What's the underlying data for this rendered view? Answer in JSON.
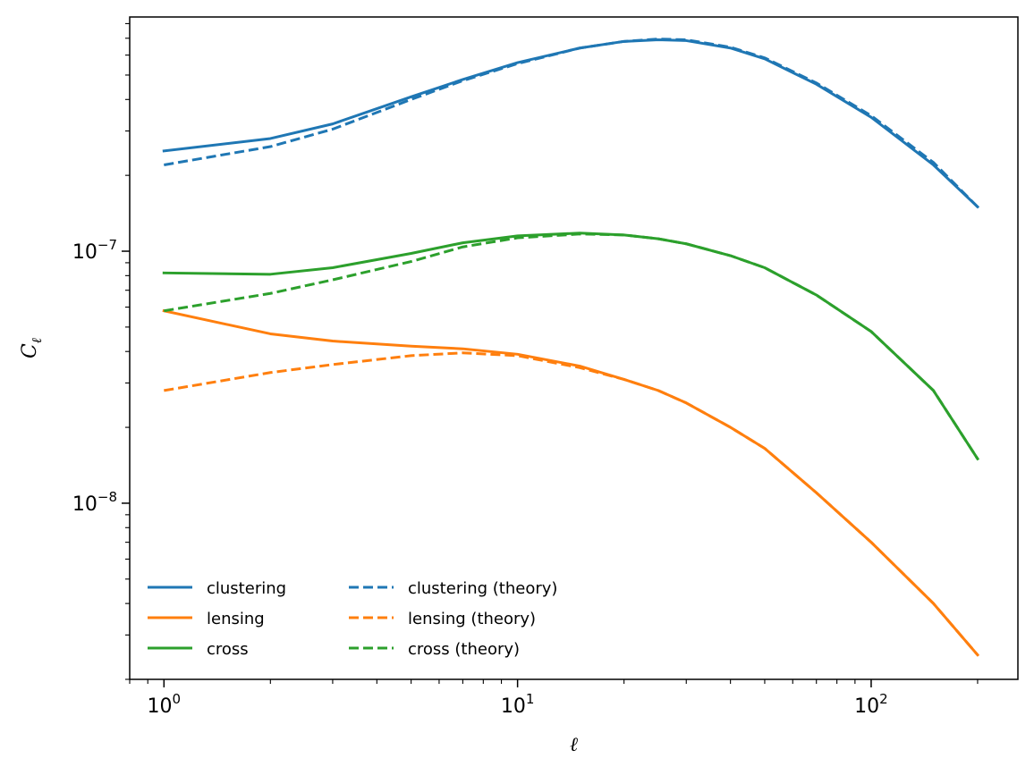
{
  "chart_data": {
    "type": "line",
    "title": "",
    "xlabel": "ℓ",
    "ylabel_main": "C",
    "ylabel_sub": "ℓ",
    "xscale": "log",
    "yscale": "log",
    "xlim": [
      0.8,
      260
    ],
    "ylim": [
      2e-09,
      8.5e-07
    ],
    "grid": false,
    "legend_position": "lower-left",
    "legend_columns": 2,
    "x_ticks": [
      {
        "base": "10",
        "exp": "0",
        "value": 1
      },
      {
        "base": "10",
        "exp": "1",
        "value": 10
      },
      {
        "base": "10",
        "exp": "2",
        "value": 100
      }
    ],
    "y_ticks": [
      {
        "base": "10",
        "exp": "−8",
        "value": 1e-08
      },
      {
        "base": "10",
        "exp": "−7",
        "value": 1e-07
      }
    ],
    "x": [
      1,
      2,
      3,
      5,
      7,
      10,
      15,
      20,
      25,
      30,
      40,
      50,
      70,
      100,
      150,
      200
    ],
    "series": [
      {
        "name": "clustering",
        "color": "#1f77b4",
        "dash": false,
        "values": [
          2.5e-07,
          2.8e-07,
          3.2e-07,
          4.1e-07,
          4.8e-07,
          5.6e-07,
          6.4e-07,
          6.8e-07,
          6.9e-07,
          6.85e-07,
          6.4e-07,
          5.8e-07,
          4.6e-07,
          3.4e-07,
          2.2e-07,
          1.5e-07
        ]
      },
      {
        "name": "lensing",
        "color": "#ff7f0e",
        "dash": false,
        "values": [
          5.8e-08,
          4.7e-08,
          4.4e-08,
          4.2e-08,
          4.1e-08,
          3.9e-08,
          3.5e-08,
          3.1e-08,
          2.8e-08,
          2.5e-08,
          2e-08,
          1.65e-08,
          1.1e-08,
          7e-09,
          4e-09,
          2.5e-09
        ]
      },
      {
        "name": "cross",
        "color": "#2ca02c",
        "dash": false,
        "values": [
          8.2e-08,
          8.1e-08,
          8.6e-08,
          9.8e-08,
          1.08e-07,
          1.15e-07,
          1.18e-07,
          1.16e-07,
          1.12e-07,
          1.07e-07,
          9.6e-08,
          8.6e-08,
          6.7e-08,
          4.8e-08,
          2.8e-08,
          1.5e-08
        ]
      },
      {
        "name": "clustering (theory)",
        "color": "#1f77b4",
        "dash": true,
        "values": [
          2.2e-07,
          2.6e-07,
          3.05e-07,
          4e-07,
          4.75e-07,
          5.55e-07,
          6.4e-07,
          6.8e-07,
          6.95e-07,
          6.9e-07,
          6.45e-07,
          5.85e-07,
          4.65e-07,
          3.45e-07,
          2.25e-07,
          1.5e-07
        ]
      },
      {
        "name": "lensing (theory)",
        "color": "#ff7f0e",
        "dash": true,
        "values": [
          2.8e-08,
          3.3e-08,
          3.55e-08,
          3.85e-08,
          3.95e-08,
          3.85e-08,
          3.45e-08,
          3.1e-08,
          2.8e-08,
          2.5e-08,
          2e-08,
          1.65e-08,
          1.1e-08,
          7e-09,
          4e-09,
          2.5e-09
        ]
      },
      {
        "name": "cross (theory)",
        "color": "#2ca02c",
        "dash": true,
        "values": [
          5.8e-08,
          6.8e-08,
          7.7e-08,
          9.1e-08,
          1.04e-07,
          1.13e-07,
          1.17e-07,
          1.16e-07,
          1.12e-07,
          1.07e-07,
          9.6e-08,
          8.6e-08,
          6.7e-08,
          4.8e-08,
          2.8e-08,
          1.5e-08
        ]
      }
    ]
  }
}
